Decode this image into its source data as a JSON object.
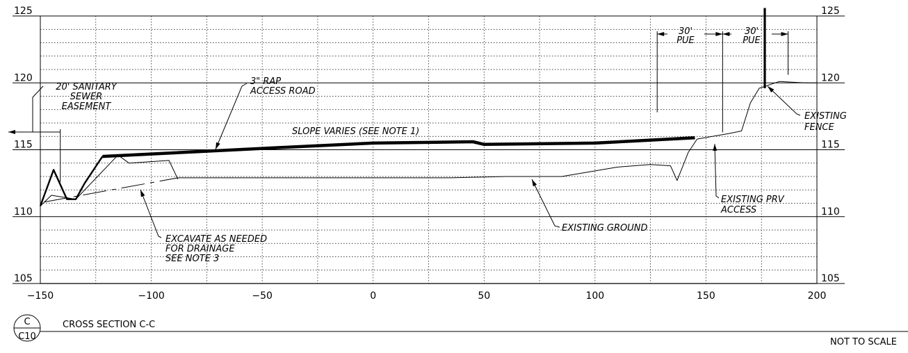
{
  "chart_data": {
    "type": "line",
    "xlim": [
      -150,
      200
    ],
    "ylim": [
      105,
      125
    ],
    "x_ticks": [
      -150,
      -100,
      -50,
      0,
      50,
      100,
      150,
      200
    ],
    "x_tick_labels": [
      "−150",
      "−100",
      "−50",
      "0",
      "50",
      "100",
      "150",
      "200"
    ],
    "y_ticks": [
      105,
      110,
      115,
      120,
      125
    ],
    "y_tick_labels": [
      "105",
      "110",
      "115",
      "120",
      "125"
    ],
    "grid": true,
    "series": [
      {
        "id": "access-road",
        "style": "heavy",
        "points": [
          [
            -122,
            114.5
          ],
          [
            -50,
            115.1
          ],
          [
            0,
            115.5
          ],
          [
            45,
            115.6
          ],
          [
            50,
            115.4
          ],
          [
            100,
            115.5
          ],
          [
            145,
            115.9
          ]
        ]
      },
      {
        "id": "road-side-slope",
        "style": "heavy-thin",
        "points": [
          [
            -130,
            112.5
          ],
          [
            -122,
            114.5
          ]
        ]
      },
      {
        "id": "ditch-profile",
        "style": "heavy-thin",
        "points": [
          [
            -150,
            110.8
          ],
          [
            -144,
            113.5
          ],
          [
            -138,
            111.3
          ],
          [
            -134,
            111.3
          ],
          [
            -130,
            112.5
          ]
        ]
      },
      {
        "id": "proposed-grade",
        "style": "thin",
        "points": [
          [
            -150,
            110.8
          ],
          [
            -145,
            111.6
          ],
          [
            -134,
            111.3
          ],
          [
            -115,
            114.6
          ],
          [
            -110,
            114.0
          ],
          [
            -92,
            114.2
          ],
          [
            -88,
            112.8
          ]
        ]
      },
      {
        "id": "excavation-line",
        "style": "dashed",
        "points": [
          [
            -148,
            111.1
          ],
          [
            -88,
            112.9
          ]
        ]
      },
      {
        "id": "existing-ground",
        "style": "thin",
        "points": [
          [
            -88,
            112.9
          ],
          [
            -50,
            112.9
          ],
          [
            0,
            112.9
          ],
          [
            35,
            112.9
          ],
          [
            60,
            113.0
          ],
          [
            85,
            113.0
          ],
          [
            110,
            113.7
          ],
          [
            125,
            113.9
          ],
          [
            134,
            113.8
          ],
          [
            137,
            112.7
          ],
          [
            142,
            114.8
          ],
          [
            146,
            115.8
          ],
          [
            160,
            116.2
          ],
          [
            166,
            116.4
          ],
          [
            170,
            118.5
          ],
          [
            174,
            119.6
          ],
          [
            183,
            120.1
          ],
          [
            195,
            120.0
          ],
          [
            200,
            120.0
          ]
        ]
      }
    ],
    "fence": {
      "x": 176.5,
      "y_bottom": 119.6,
      "y_top": 125.6
    },
    "easement_marker_x": -141,
    "pue": {
      "left_x": 128,
      "mid_x": 157.5,
      "right_x": 187,
      "y_left": 117.8,
      "y_mid": 116.3,
      "y_right": 120.6
    },
    "annotations": [
      {
        "id": "sanitary-easement",
        "lines": [
          "20' SANITARY",
          "SEWER",
          "EASEMENT"
        ]
      },
      {
        "id": "rap-road",
        "lines": [
          "3\" RAP",
          "ACCESS ROAD"
        ]
      },
      {
        "id": "slope-varies",
        "lines": [
          "SLOPE VARIES (SEE NOTE 1)"
        ]
      },
      {
        "id": "excavate-drainage",
        "lines": [
          "EXCAVATE AS NEEDED",
          "FOR DRAINAGE",
          "SEE NOTE 3"
        ]
      },
      {
        "id": "existing-ground",
        "lines": [
          "EXISTING GROUND"
        ]
      },
      {
        "id": "prv-access",
        "lines": [
          "EXISTING PRV",
          "ACCESS"
        ]
      },
      {
        "id": "existing-fence",
        "lines": [
          "EXISTING",
          "FENCE"
        ]
      },
      {
        "id": "pue-left",
        "lines": [
          "30'",
          "PUE"
        ]
      },
      {
        "id": "pue-right",
        "lines": [
          "30'",
          "PUE"
        ]
      }
    ]
  },
  "section_marker": {
    "top": "C",
    "bottom": "C10"
  },
  "section_title": "CROSS SECTION C-C",
  "scale_note": "NOT TO SCALE"
}
